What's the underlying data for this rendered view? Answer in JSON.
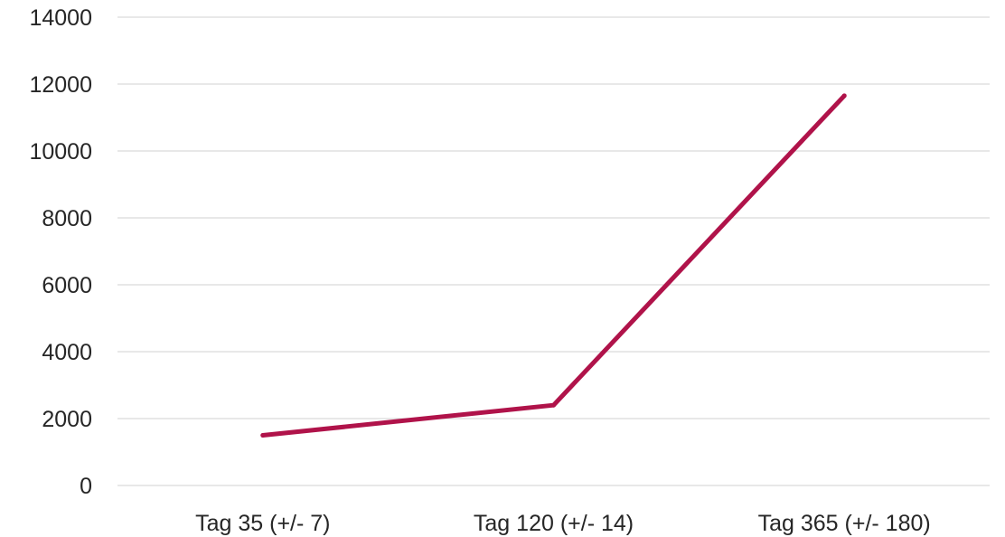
{
  "chart_data": {
    "type": "line",
    "categories": [
      "Tag 35 (+/- 7)",
      "Tag 120 (+/- 14)",
      "Tag 365 (+/- 180)"
    ],
    "series": [
      {
        "values": [
          1500,
          2400,
          11650
        ],
        "color": "#b0134a"
      }
    ],
    "ylim": [
      0,
      14000
    ],
    "yticks": [
      0,
      2000,
      4000,
      6000,
      8000,
      10000,
      12000,
      14000
    ],
    "grid": true,
    "gridColor": "#d9d9d9",
    "legend": "none"
  }
}
